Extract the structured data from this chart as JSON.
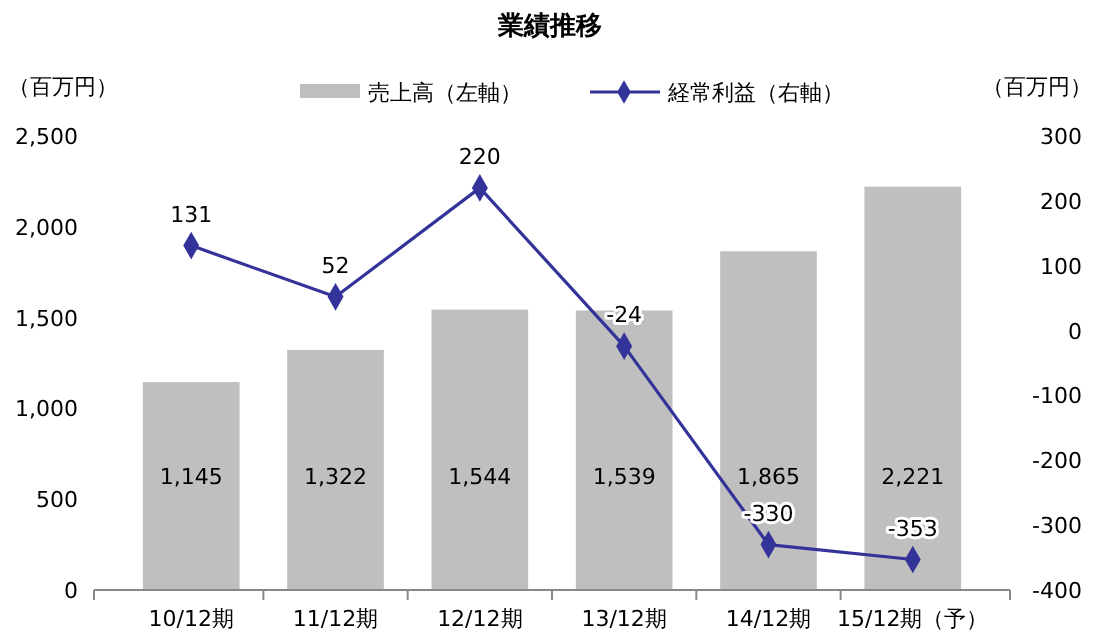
{
  "chart_data": {
    "type": "bar",
    "title": "業績推移",
    "ylabel": "（百万円）",
    "y2label": "（百万円）",
    "categories": [
      "10/12期",
      "11/12期",
      "12/12期",
      "13/12期",
      "14/12期",
      "15/12期（予）"
    ],
    "series": [
      {
        "name": "売上高（左軸）",
        "color": "#bfbfbf",
        "values": [
          1145,
          1322,
          1544,
          1539,
          1865,
          2221
        ],
        "value_labels": [
          "1,145",
          "1,322",
          "1,544",
          "1,539",
          "1,865",
          "2,221"
        ]
      },
      {
        "name": "経常利益（右軸）",
        "type": "line",
        "axis": "y2",
        "color": "#333399",
        "marker": "diamond",
        "values": [
          131,
          52,
          220,
          -24,
          -330,
          -353
        ],
        "value_labels": [
          "131",
          "52",
          "220",
          "-24",
          "-330",
          "-353"
        ]
      }
    ],
    "ylim": [
      0,
      2500
    ],
    "yticks": [
      0,
      {
        "value": 500,
        "label": "500"
      },
      {
        "value": 1000,
        "label": "1,000"
      },
      {
        "value": 1500,
        "label": "1,500"
      },
      {
        "value": 2000,
        "label": "2,000"
      },
      {
        "value": 2500,
        "label": "2,500"
      }
    ],
    "y2lim": [
      -400,
      300
    ],
    "y2ticks": [
      -400,
      -300,
      -200,
      -100,
      0,
      100,
      200,
      300
    ],
    "legend": "top",
    "grid": false
  }
}
